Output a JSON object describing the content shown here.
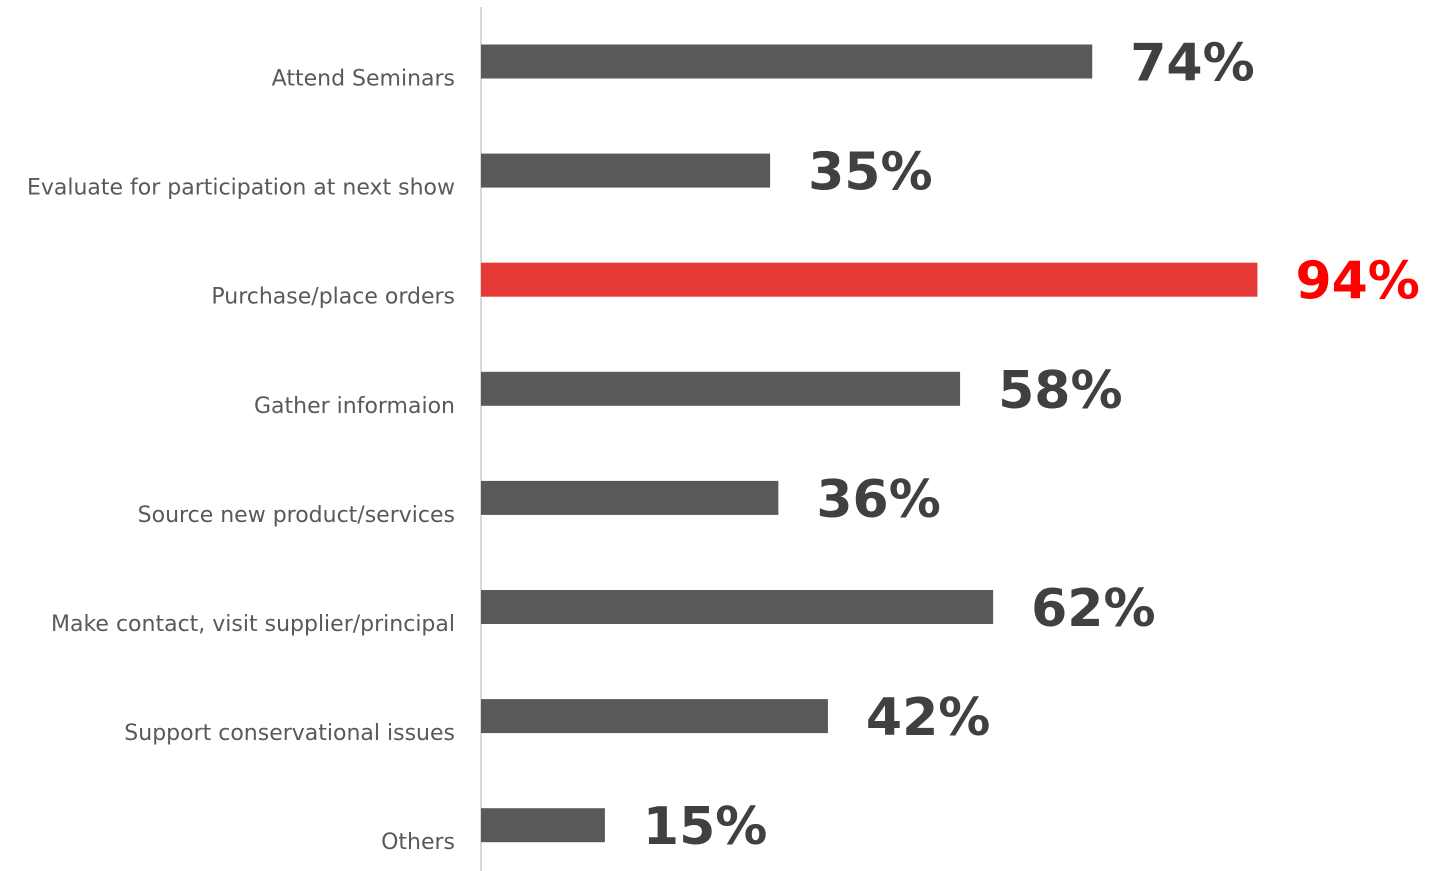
{
  "chart_data": {
    "type": "bar",
    "orientation": "horizontal",
    "categories": [
      "Attend Seminars",
      "Evaluate for participation at next show",
      "Purchase/place orders",
      "Gather informaion",
      "Source new product/services",
      "Make contact, visit supplier/principal",
      "Support conservational issues",
      "Others"
    ],
    "values": [
      74,
      35,
      94,
      58,
      36,
      62,
      42,
      15
    ],
    "value_labels": [
      "74%",
      "35%",
      "94%",
      "58%",
      "36%",
      "62%",
      "42%",
      "15%"
    ],
    "title": "",
    "xlabel": "",
    "ylabel": "",
    "xlim": [
      0,
      100
    ],
    "grid": false,
    "legend": "none",
    "highlight_index": 2,
    "colors": {
      "bar": "#595959",
      "bar_highlight": "#E53935",
      "label": "#404040",
      "label_highlight": "#FF0000",
      "axis": "#D9D9D9",
      "category_text": "#595959"
    }
  }
}
